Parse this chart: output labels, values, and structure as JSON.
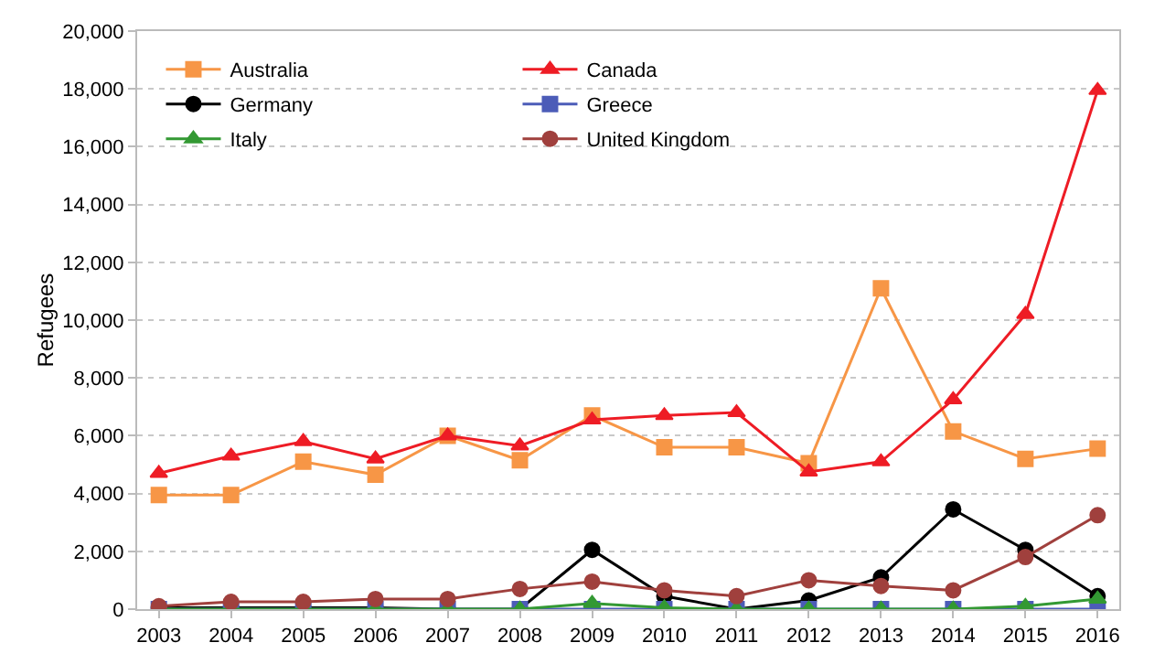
{
  "chart_data": {
    "type": "line",
    "ylabel": "Refugees",
    "categories": [
      "2003",
      "2004",
      "2005",
      "2006",
      "2007",
      "2008",
      "2009",
      "2010",
      "2011",
      "2012",
      "2013",
      "2014",
      "2015",
      "2016"
    ],
    "ylim": [
      0,
      20000
    ],
    "yticks": [
      {
        "value": 0,
        "label": "0"
      },
      {
        "value": 2000,
        "label": "2,000"
      },
      {
        "value": 4000,
        "label": "4,000"
      },
      {
        "value": 6000,
        "label": "6,000"
      },
      {
        "value": 8000,
        "label": "8,000"
      },
      {
        "value": 10000,
        "label": "10,000"
      },
      {
        "value": 12000,
        "label": "12,000"
      },
      {
        "value": 14000,
        "label": "14,000"
      },
      {
        "value": 16000,
        "label": "16,000"
      },
      {
        "value": 18000,
        "label": "18,000"
      },
      {
        "value": 20000,
        "label": "20,000"
      }
    ],
    "grid": "y",
    "legend": "top",
    "line_style": "solid",
    "series": [
      {
        "name": "Australia",
        "color": "#f79646",
        "marker": "square",
        "values": [
          3950,
          3950,
          5100,
          4650,
          6000,
          5150,
          6700,
          5600,
          5600,
          5050,
          11100,
          6150,
          5200,
          5550
        ]
      },
      {
        "name": "Canada",
        "color": "#ee1c25",
        "marker": "triangle",
        "values": [
          4700,
          5300,
          5800,
          5200,
          6000,
          5650,
          6550,
          6700,
          6800,
          4750,
          5100,
          7250,
          10200,
          17950
        ]
      },
      {
        "name": "Germany",
        "color": "#000000",
        "marker": "circle",
        "values": [
          50,
          50,
          50,
          50,
          0,
          0,
          2050,
          450,
          0,
          300,
          1100,
          3450,
          2050,
          450
        ]
      },
      {
        "name": "Greece",
        "color": "#4c5cb8",
        "marker": "square",
        "values": [
          0,
          0,
          0,
          0,
          0,
          0,
          0,
          0,
          0,
          0,
          0,
          0,
          0,
          0
        ]
      },
      {
        "name": "Italy",
        "color": "#339933",
        "marker": "triangle",
        "values": [
          0,
          0,
          0,
          0,
          0,
          0,
          200,
          50,
          0,
          0,
          0,
          0,
          100,
          350
        ]
      },
      {
        "name": "United Kingdom",
        "color": "#a0403d",
        "marker": "circle",
        "values": [
          100,
          250,
          250,
          350,
          350,
          700,
          950,
          650,
          450,
          1000,
          800,
          650,
          1800,
          3250
        ]
      }
    ]
  }
}
